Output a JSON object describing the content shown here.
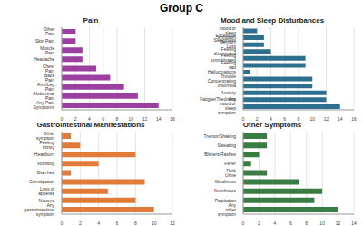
{
  "title": "Group C",
  "chart_data": [
    {
      "type": "bar",
      "orientation": "horizontal",
      "title": "Pain",
      "categories": [
        "Other Pain",
        "Skin Pain",
        "Muscle Pain",
        "Headache",
        "Chest Pain",
        "Back Pain",
        "Arm/Leg Pain",
        "Abdominal Pain",
        "Any Pain Symptoms"
      ],
      "values": [
        2,
        2,
        3,
        3,
        5,
        7,
        9,
        11,
        14
      ],
      "color": "#9b3fa0",
      "xlim": [
        0,
        16
      ],
      "xticks": [
        0,
        2,
        4,
        6,
        8,
        10,
        12,
        14,
        16
      ],
      "grid": true
    },
    {
      "type": "bar",
      "orientation": "horizontal",
      "title": "Mood and Sleep Disturbances",
      "categories": [
        "Other mood or sleep symptom",
        "Excessive Sleepiness",
        "Memory Loss",
        "Feeling disoriented",
        "Feeling unmotivated",
        "Feeling sad",
        "Hallucinations",
        "Trouble Concentrating",
        "Insomnia",
        "Anxiety",
        "Fatigue/Tiredness",
        "Any mood or sleep symptom"
      ],
      "values": [
        2,
        3,
        3,
        4,
        9,
        9,
        1,
        10,
        10,
        12,
        12,
        14
      ],
      "color": "#2e6e8e",
      "xlim": [
        0,
        16
      ],
      "xticks": [
        0,
        2,
        4,
        6,
        8,
        10,
        12,
        14,
        16
      ],
      "grid": true
    },
    {
      "type": "bar",
      "orientation": "horizontal",
      "title": "Gastrointestinal Manifestations",
      "categories": [
        "Other symptom",
        "Feeling thirsty",
        "Heartburn",
        "Vomiting",
        "Diarrhea",
        "Constipation",
        "Loss of appetite",
        "Nausea",
        "Any gastrointestinal symptom"
      ],
      "values": [
        1,
        2,
        8,
        4,
        1,
        9,
        5,
        8,
        10
      ],
      "color": "#e07b39",
      "xlim": [
        0,
        12
      ],
      "xticks": [
        0,
        2,
        4,
        6,
        8,
        10,
        12
      ],
      "grid": true
    },
    {
      "type": "bar",
      "orientation": "horizontal",
      "title": "Other Symptoms",
      "categories": [
        "Tremor/Shaking",
        "Sweating",
        "Blisters/Rashes",
        "Fever",
        "Dark Urine",
        "Weakness",
        "Numbness",
        "Palpitation",
        "Any other symptom"
      ],
      "values": [
        3,
        3,
        2,
        1,
        3,
        7,
        10,
        9,
        12
      ],
      "color": "#3a7d44",
      "xlim": [
        0,
        14
      ],
      "xticks": [
        0,
        2,
        4,
        6,
        8,
        10,
        12,
        14
      ],
      "grid": true
    }
  ]
}
